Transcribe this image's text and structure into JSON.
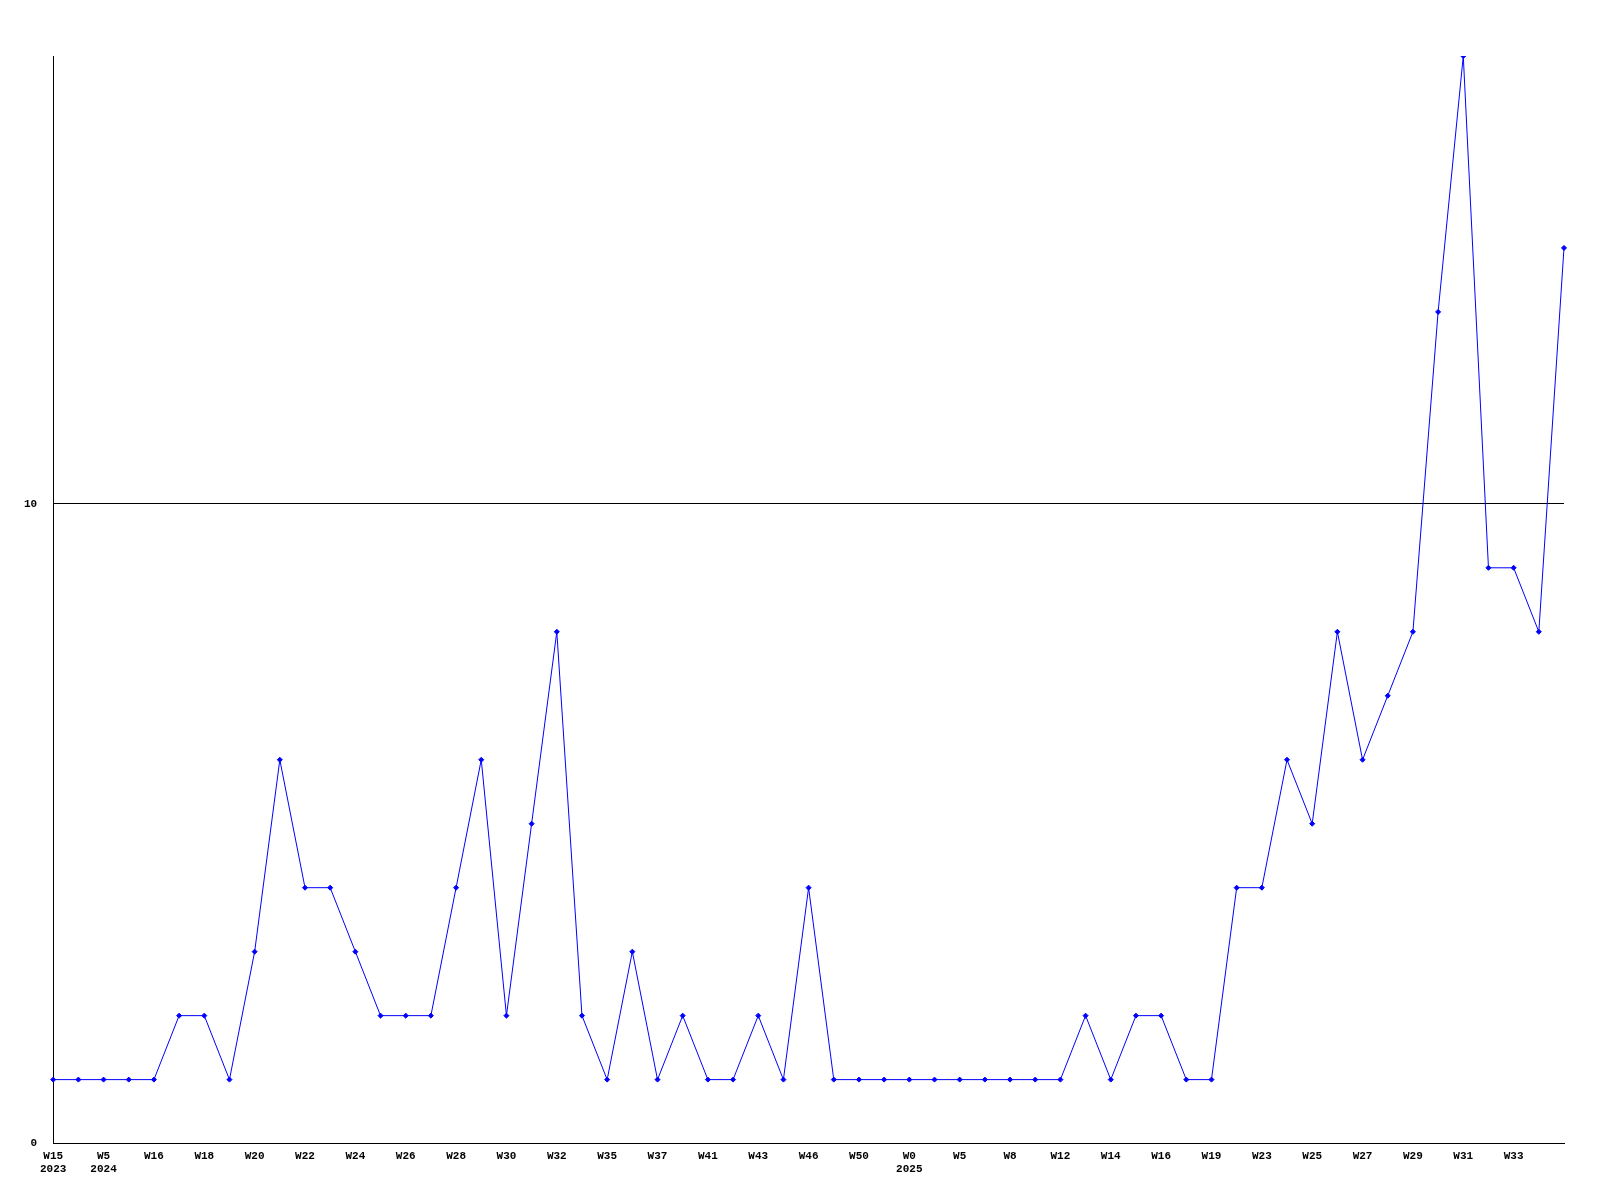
{
  "chart_data": {
    "type": "line",
    "categories": [
      "W15\n2023",
      null,
      "W5\n2024",
      null,
      "W16",
      null,
      "W18",
      null,
      "W20",
      null,
      "W22",
      null,
      "W24",
      null,
      "W26",
      null,
      "W28",
      null,
      "W30",
      null,
      "W32",
      null,
      "W35",
      null,
      "W37",
      null,
      "W41",
      null,
      "W43",
      null,
      "W46",
      null,
      "W50",
      null,
      "W0\n2025",
      null,
      "W5",
      null,
      "W8",
      null,
      "W12",
      null,
      "W14",
      null,
      "W16",
      null,
      "W19",
      null,
      "W23",
      null,
      "W25",
      null,
      "W27",
      null,
      "W29",
      null,
      "W31",
      null,
      "W33",
      null,
      null
    ],
    "series": [
      {
        "color": "#0000ff",
        "values": [
          1,
          1,
          1,
          1,
          1,
          2,
          2,
          1,
          3,
          6,
          4,
          4,
          3,
          2,
          2,
          2,
          4,
          6,
          2,
          5,
          8,
          2,
          1,
          3,
          1,
          2,
          1,
          1,
          2,
          1,
          4,
          1,
          1,
          1,
          1,
          1,
          1,
          1,
          1,
          1,
          1,
          2,
          1,
          2,
          2,
          1,
          1,
          4,
          4,
          6,
          5,
          8,
          6,
          7,
          8,
          13,
          17,
          9,
          9,
          8,
          14
        ]
      }
    ],
    "ylim": [
      0,
      17
    ],
    "yticks": [
      0,
      10
    ],
    "grid": "y",
    "marker": "diamond",
    "line_style": "solid",
    "legend": false
  }
}
